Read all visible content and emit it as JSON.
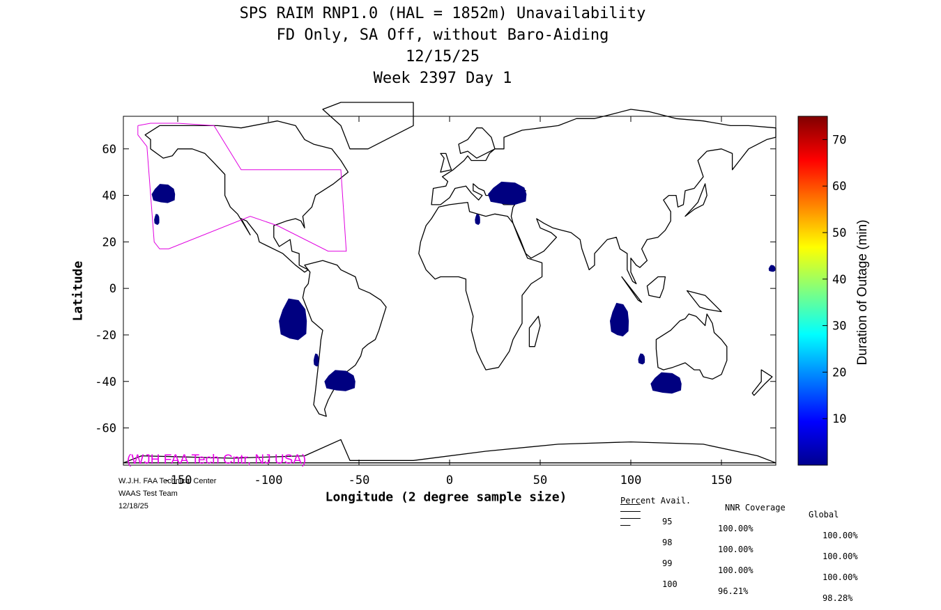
{
  "title_lines": [
    "SPS RAIM RNP1.0 (HAL = 1852m) Unavailability",
    "FD Only, SA Off, without Baro-Aiding",
    "12/15/25",
    "Week 2397 Day 1"
  ],
  "chart_data": {
    "type": "heatmap",
    "subtype": "world map",
    "xlabel": "Longitude (2 degree sample size)",
    "ylabel": "Latitude",
    "xlim": [
      -180,
      180
    ],
    "ylim": [
      -76,
      74
    ],
    "x_ticks": [
      -150,
      -100,
      -50,
      0,
      50,
      100,
      150
    ],
    "x_tick_labels": [
      "-150",
      "-100",
      "-50",
      "0",
      "50",
      "100",
      "150"
    ],
    "y_ticks": [
      -60,
      -40,
      -20,
      0,
      20,
      40,
      60
    ],
    "y_tick_labels": [
      "-60",
      "-40",
      "-20",
      "0",
      "20",
      "40",
      "60"
    ],
    "colorbar": {
      "label": "Duration of Outage (min)",
      "range": [
        0,
        75
      ],
      "ticks": [
        10,
        20,
        30,
        40,
        50,
        60,
        70
      ],
      "tick_labels": [
        "10",
        "20",
        "30",
        "40",
        "50",
        "60",
        "70"
      ],
      "colormap": "jet"
    },
    "outage_regions": [
      {
        "region": "North Pacific (west of California)",
        "lon": [
          -165,
          -150
        ],
        "lat": [
          36,
          45
        ],
        "approx_minutes": 2
      },
      {
        "region": "Pacific near Hawaii",
        "lon": [
          -163,
          -160
        ],
        "lat": [
          27,
          32
        ],
        "approx_minutes": 2
      },
      {
        "region": "Eastern Pacific off Peru/Chile",
        "lon": [
          -95,
          -77
        ],
        "lat": [
          -24,
          -4
        ],
        "approx_minutes": 2
      },
      {
        "region": "Southern Chile",
        "lon": [
          -75,
          -72
        ],
        "lat": [
          -34,
          -28
        ],
        "approx_minutes": 2
      },
      {
        "region": "Argentina",
        "lon": [
          -70,
          -50
        ],
        "lat": [
          -45,
          -35
        ],
        "approx_minutes": 2
      },
      {
        "region": "Turkey / Eastern Mediterranean",
        "lon": [
          20,
          45
        ],
        "lat": [
          35,
          46
        ],
        "approx_minutes": 2
      },
      {
        "region": "Libya coast",
        "lon": [
          14,
          17
        ],
        "lat": [
          27,
          32
        ],
        "approx_minutes": 2
      },
      {
        "region": "Indian Ocean off Sumatra",
        "lon": [
          88,
          100
        ],
        "lat": [
          -22,
          -6
        ],
        "approx_minutes": 2
      },
      {
        "region": "Off Western Australia",
        "lon": [
          104,
          108
        ],
        "lat": [
          -33,
          -28
        ],
        "approx_minutes": 2
      },
      {
        "region": "South of Australia",
        "lon": [
          110,
          130
        ],
        "lat": [
          -46,
          -36
        ],
        "approx_minutes": 2
      },
      {
        "region": "Western Pacific",
        "lon": [
          176,
          180
        ],
        "lat": [
          7,
          10
        ],
        "approx_minutes": 2
      }
    ],
    "colors": {
      "outage_fill": "#000080",
      "boundary_line": "#e000e0",
      "coastline": "#000000"
    }
  },
  "watermark": "(WJH FAA Tech Cntr, NJ USA)",
  "footer_left": [
    "W.J.H. FAA Technical Center",
    "WAAS Test Team",
    "12/18/25"
  ],
  "stats": {
    "headers": [
      "Percent Avail.",
      "NNR Coverage",
      "Global"
    ],
    "rows": [
      [
        "95",
        "100.00%",
        "100.00%"
      ],
      [
        "98",
        "100.00%",
        "100.00%"
      ],
      [
        "99",
        "100.00%",
        "100.00%"
      ],
      [
        "100",
        "96.21%",
        "98.28%"
      ]
    ]
  }
}
